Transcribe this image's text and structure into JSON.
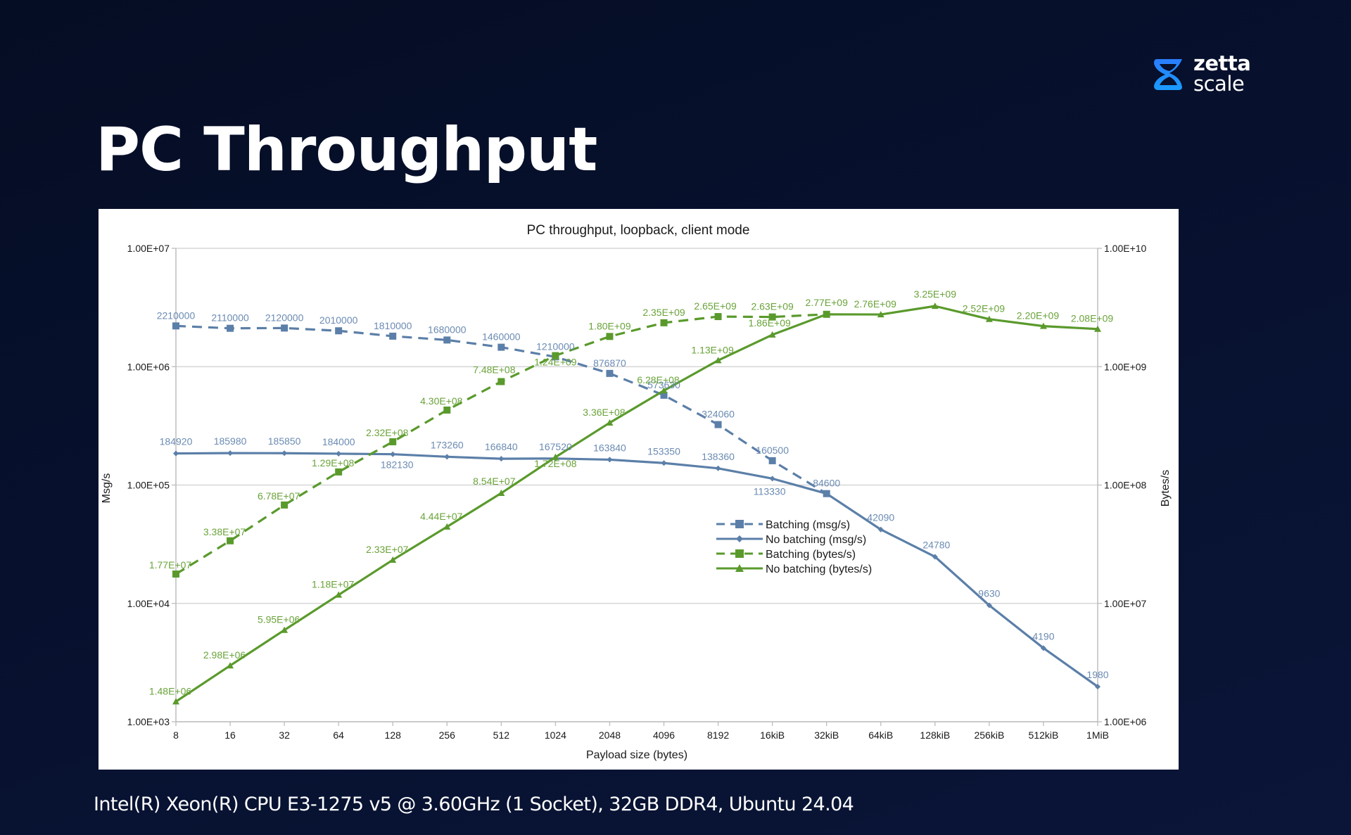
{
  "slide": {
    "title": "PC Throughput",
    "footer": "Intel(R) Xeon(R) CPU E3-1275 v5 @ 3.60GHz (1 Socket), 32GB DDR4, Ubuntu 24.04",
    "logo": {
      "icon": "zettascale-logo-icon",
      "line1": "zetta",
      "line2": "scale",
      "color": "#1e7bff"
    }
  },
  "chart_data": {
    "type": "line",
    "title": "PC throughput, loopback, client mode",
    "xlabel": "Payload size (bytes)",
    "ylabel": "Msg/s",
    "y2label": "Bytes/s",
    "yscale": "log",
    "ylim": [
      1000,
      10000000
    ],
    "y2lim": [
      1000000,
      10000000000
    ],
    "yticks": [
      "1.00E+03",
      "1.00E+04",
      "1.00E+05",
      "1.00E+06",
      "1.00E+07"
    ],
    "y2ticks": [
      "1.00E+06",
      "1.00E+07",
      "1.00E+08",
      "1.00E+09",
      "1.00E+10"
    ],
    "grid": true,
    "legend_position": "bottom-right-inside",
    "categories": [
      "8",
      "16",
      "32",
      "64",
      "128",
      "256",
      "512",
      "1024",
      "2048",
      "4096",
      "8192",
      "16kiB",
      "32kiB",
      "64kiB",
      "128kiB",
      "256kiB",
      "512kiB",
      "1MiB"
    ],
    "series": [
      {
        "name": "Batching (msg/s)",
        "axis": "left",
        "color": "#5b7fa8",
        "dash": true,
        "marker": "square",
        "values": [
          2210000,
          2110000,
          2120000,
          2010000,
          1810000,
          1680000,
          1460000,
          1210000,
          876870,
          573630,
          324060,
          160500,
          84600,
          null,
          null,
          null,
          null,
          null
        ],
        "labels": [
          "2210000",
          "2110000",
          "2120000",
          "2010000",
          "1810000",
          "1680000",
          "1460000",
          "1210000",
          "876870",
          "573630",
          "324060",
          "160500",
          "84600",
          null,
          null,
          null,
          null,
          null
        ]
      },
      {
        "name": "No batching (msg/s)",
        "axis": "left",
        "color": "#5b7fa8",
        "dash": false,
        "marker": "diamond",
        "values": [
          184920,
          185980,
          185850,
          184000,
          182130,
          173260,
          166840,
          167520,
          163840,
          153350,
          138360,
          113330,
          84600,
          42090,
          24780,
          9630,
          4190,
          1980
        ],
        "labels": [
          "184920",
          "185980",
          "185850",
          "184000",
          "182130",
          "173260",
          "166840",
          "167520",
          "163840",
          "153350",
          "138360",
          "113330",
          null,
          "42090",
          "24780",
          "9630",
          "4190",
          "1980"
        ]
      },
      {
        "name": "Batching (bytes/s)",
        "axis": "right",
        "color": "#5a9a2c",
        "dash": true,
        "marker": "square",
        "values": [
          17700000,
          33800000,
          67800000,
          129000000,
          232000000,
          430000000,
          748000000,
          1240000000,
          1800000000,
          2350000000,
          2650000000,
          2630000000,
          2770000000,
          null,
          null,
          null,
          null,
          null
        ],
        "labels": [
          "1.77E+07",
          "3.38E+07",
          "6.78E+07",
          "1.29E+08",
          "2.32E+08",
          "4.30E+08",
          "7.48E+08",
          "1.24E+09",
          "1.80E+09",
          "2.35E+09",
          "2.65E+09",
          "2.63E+09",
          null,
          null,
          null,
          null,
          null,
          null
        ]
      },
      {
        "name": "No batching (bytes/s)",
        "axis": "right",
        "color": "#5a9a2c",
        "dash": false,
        "marker": "triangle",
        "values": [
          1480000,
          2980000,
          5950000,
          11800000,
          23300000,
          44400000,
          85400000,
          172000000,
          336000000,
          628000000,
          1130000000,
          1860000000,
          2770000000,
          2760000000,
          3250000000,
          2520000000,
          2200000000,
          2080000000
        ],
        "labels": [
          "1.48E+06",
          "2.98E+06",
          "5.95E+06",
          "1.18E+07",
          "2.33E+07",
          "4.44E+07",
          "8.54E+07",
          "1.72E+08",
          "3.36E+08",
          "6.28E+08",
          "1.13E+09",
          "1.86E+09",
          "2.77E+09",
          "2.76E+09",
          "3.25E+09",
          "2.52E+09",
          "2.20E+09",
          "2.08E+09"
        ]
      }
    ]
  }
}
